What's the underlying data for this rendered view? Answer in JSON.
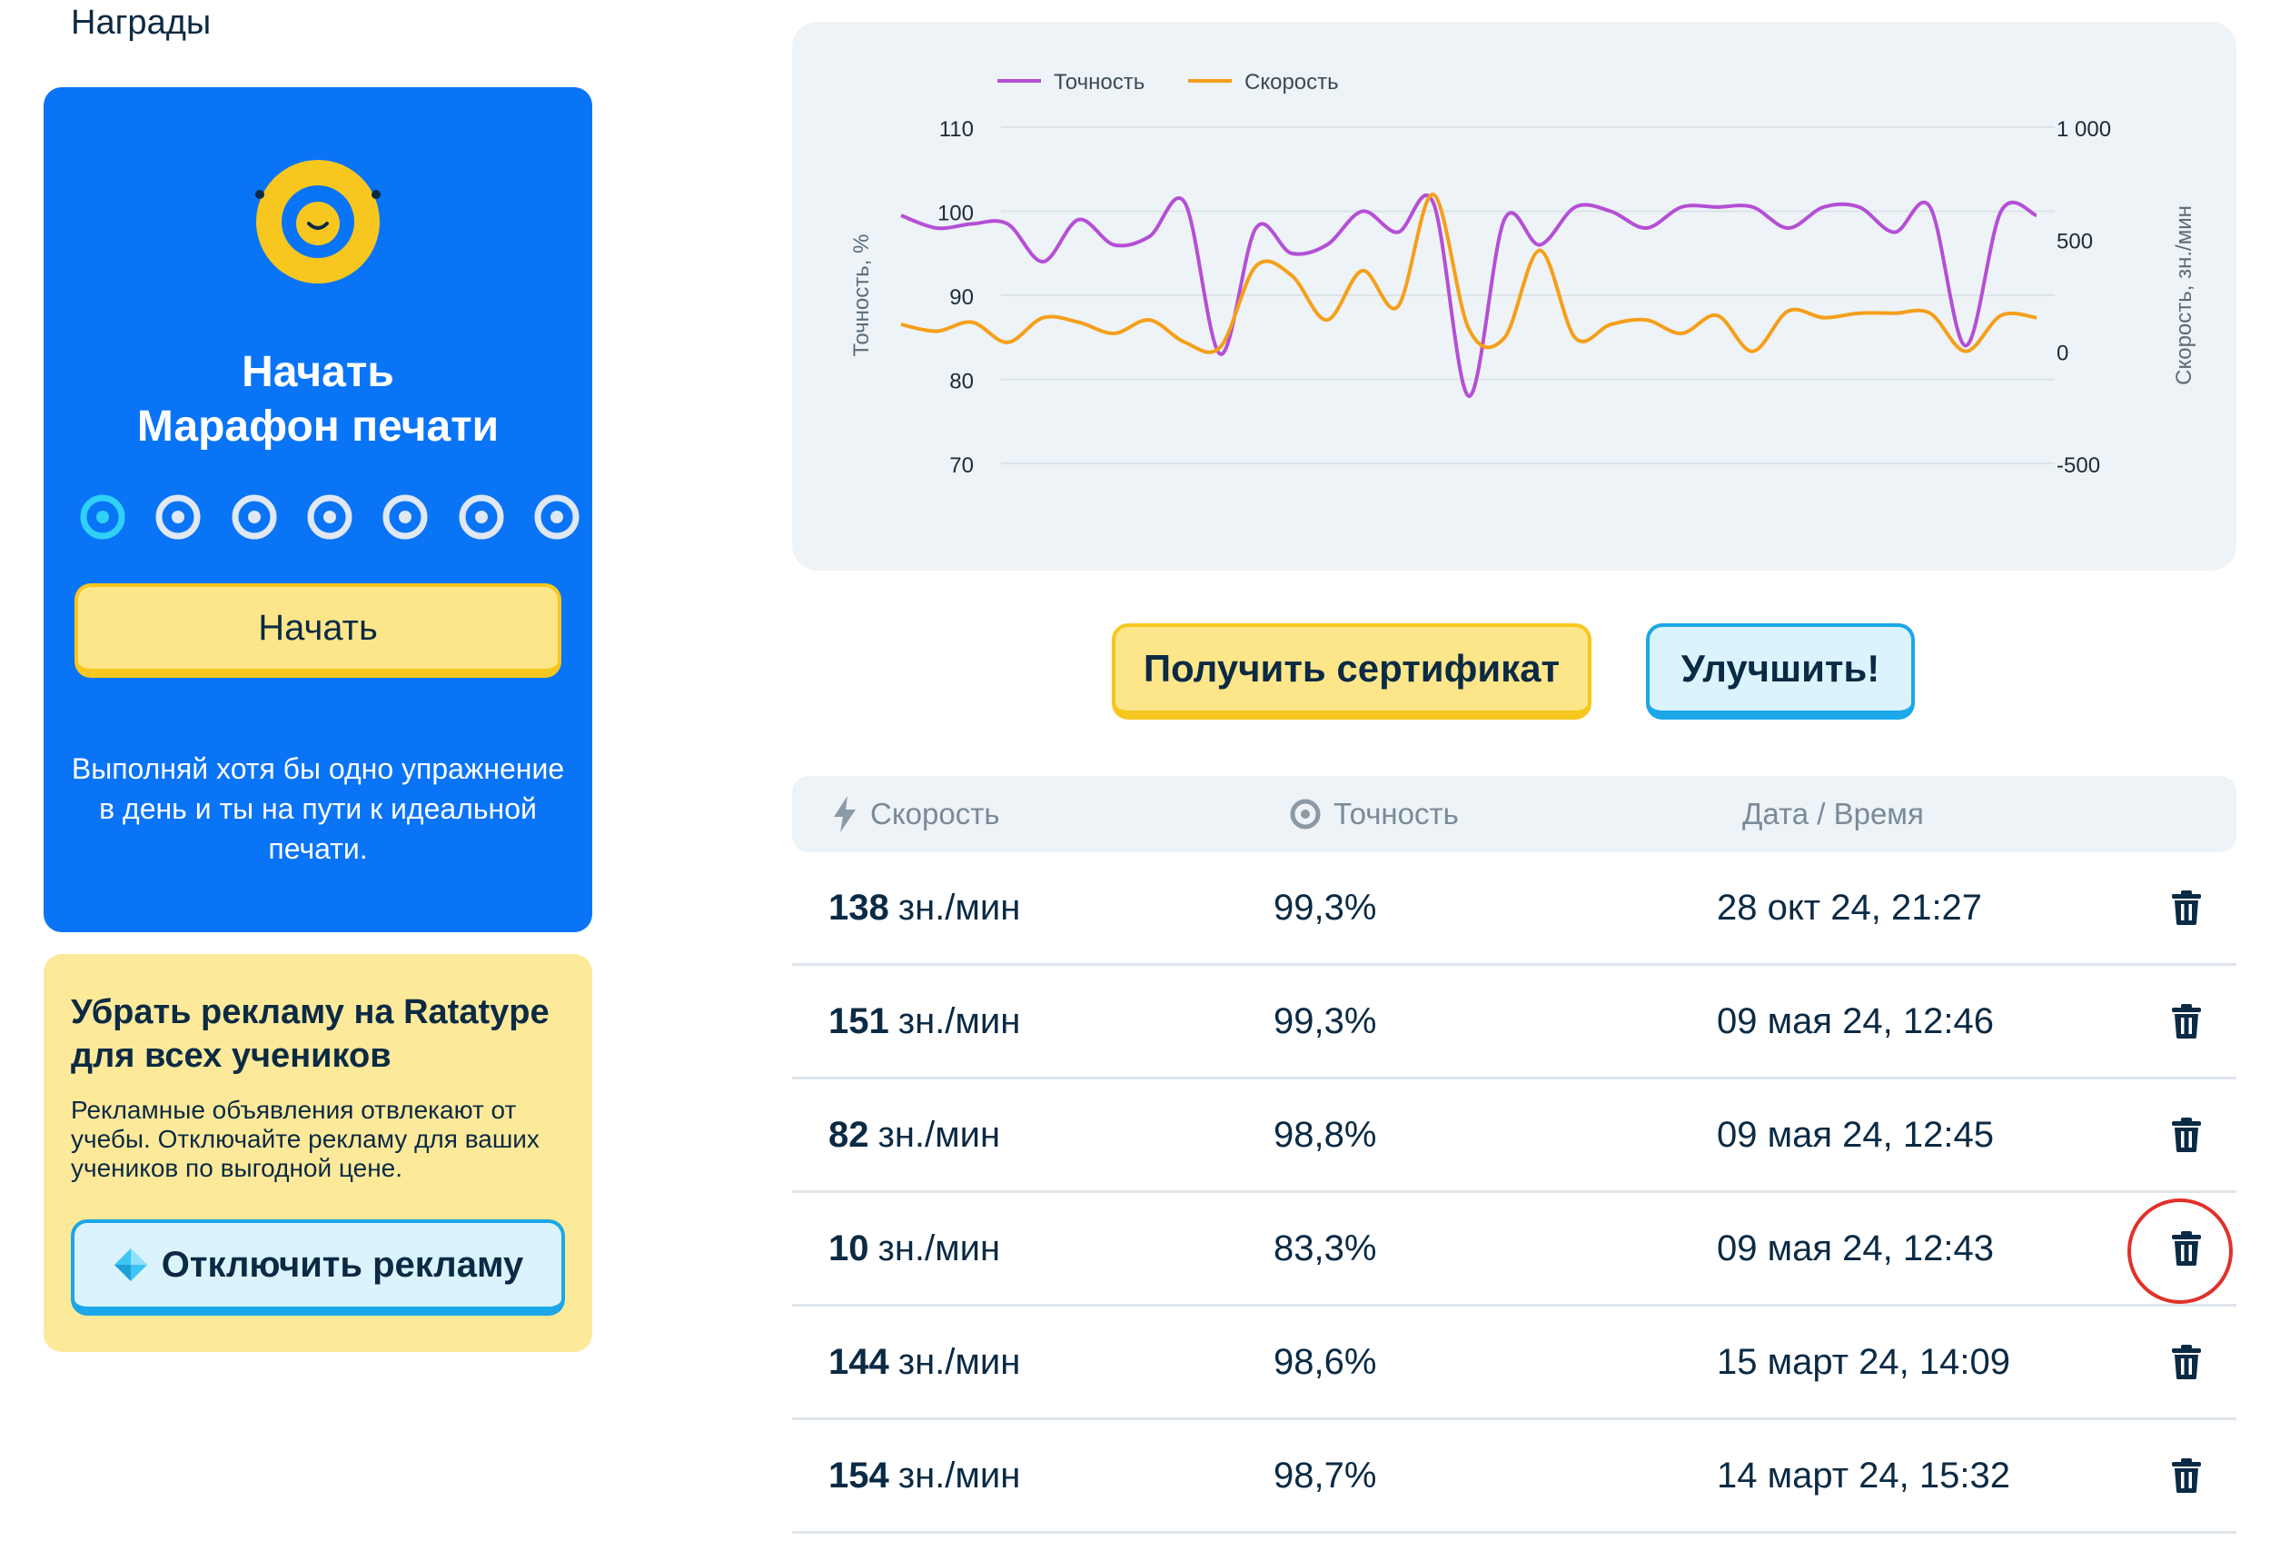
{
  "awards": {
    "title": "Награды"
  },
  "marathon": {
    "title_line1": "Начать",
    "title_line2": "Марафон печати",
    "days_total": 7,
    "days_active": 1,
    "start_label": "Начать",
    "description": "Выполняй хотя бы одно упражнение в день и ты на пути к идеальной печати.",
    "mascot_icon": "smiling-coin-icon"
  },
  "ads": {
    "title": "Убрать рекламу на Ratatype для всех учеников",
    "description": "Рекламные объявления отвлекают от учебы. Отключайте рекламу для ваших учеников по выгодной цене.",
    "button_label": "Отключить рекламу",
    "button_icon": "diamond-icon"
  },
  "colors": {
    "primary_blue": "#0a74f7",
    "yellow": "#fde68a",
    "accuracy_line": "#b44fd6",
    "speed_line": "#f59f1a",
    "delete_highlight": "#e1302a"
  },
  "chart_data": {
    "type": "line",
    "legend_position": "top-left",
    "grid": true,
    "ylabel": "Точность, %",
    "y2label": "Скорость, зн./мин",
    "ylim": [
      70,
      110
    ],
    "y2lim": [
      -500,
      1000
    ],
    "yticks": [
      "110",
      "100",
      "90",
      "80",
      "70"
    ],
    "y2ticks": [
      "1 000",
      "500",
      "0",
      "-500"
    ],
    "series": [
      {
        "name": "Точность",
        "axis": "left",
        "color": "#b44fd6",
        "values": [
          99.5,
          98,
          98.5,
          98.5,
          94,
          99,
          96,
          97,
          101,
          83,
          98,
          95,
          96,
          100,
          97.5,
          101,
          78,
          99,
          96,
          100.5,
          100,
          98,
          100.5,
          100.5,
          100.5,
          98,
          100.5,
          100.5,
          97.5,
          100.5,
          84,
          100,
          99.5
        ]
      },
      {
        "name": "Скорость",
        "axis": "right",
        "color": "#f59f1a",
        "values": [
          120,
          90,
          130,
          40,
          150,
          130,
          80,
          140,
          40,
          20,
          380,
          340,
          140,
          360,
          200,
          700,
          100,
          60,
          450,
          60,
          120,
          140,
          80,
          160,
          0,
          180,
          150,
          170,
          170,
          170,
          0,
          160,
          150
        ]
      }
    ]
  },
  "actions": {
    "certificate_label": "Получить сертификат",
    "improve_label": "Улучшить!"
  },
  "table": {
    "headers": {
      "speed": "Скорость",
      "accuracy": "Точность",
      "datetime": "Дата / Время"
    },
    "rows": [
      {
        "speed": "138",
        "unit": "зн./мин",
        "accuracy": "99,3%",
        "datetime": "28 окт 24, 21:27"
      },
      {
        "speed": "151",
        "unit": "зн./мин",
        "accuracy": "99,3%",
        "datetime": "09 мая 24, 12:46"
      },
      {
        "speed": "82",
        "unit": "зн./мин",
        "accuracy": "98,8%",
        "datetime": "09 мая 24, 12:45"
      },
      {
        "speed": "10",
        "unit": "зн./мин",
        "accuracy": "83,3%",
        "datetime": "09 мая 24, 12:43"
      },
      {
        "speed": "144",
        "unit": "зн./мин",
        "accuracy": "98,6%",
        "datetime": "15 март 24, 14:09"
      },
      {
        "speed": "154",
        "unit": "зн./мин",
        "accuracy": "98,7%",
        "datetime": "14 март 24, 15:32"
      }
    ],
    "highlighted_row_delete": 3
  }
}
